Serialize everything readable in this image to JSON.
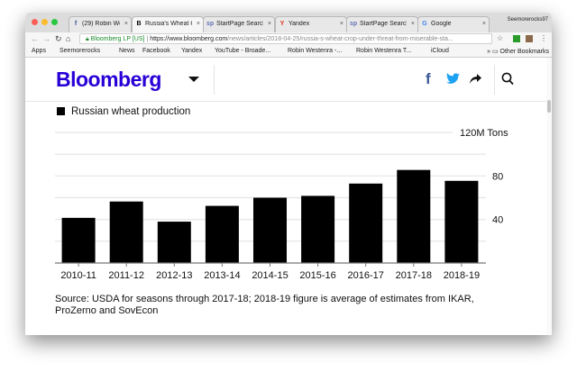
{
  "browser": {
    "tabs": [
      {
        "title": "(29) Robin Westor",
        "icon": "facebook-icon",
        "icon_char": "f",
        "icon_color": "#3b5998",
        "active": false
      },
      {
        "title": "Russia's Wheat C",
        "icon": "bloomberg-icon",
        "icon_char": "B",
        "icon_color": "#000000",
        "active": true
      },
      {
        "title": "StartPage Search",
        "icon": "startpage-icon",
        "icon_char": "sp",
        "icon_color": "#6573b5",
        "active": false
      },
      {
        "title": "Yandex",
        "icon": "yandex-icon",
        "icon_char": "Y",
        "icon_color": "#e0301e",
        "active": false
      },
      {
        "title": "StartPage Search",
        "icon": "startpage-icon",
        "icon_char": "sp",
        "icon_color": "#6573b5",
        "active": false
      },
      {
        "title": "Google",
        "icon": "google-icon",
        "icon_char": "G",
        "icon_color": "#4285f4",
        "active": false
      }
    ],
    "profile": "Seemorerocks97",
    "site_identity": "Bloomberg LP [US]",
    "url_host": "https://www.bloomberg.com",
    "url_path": "/news/articles/2018-04-25/russia-s-wheat-crop-under-threat-from-miserable-sta...",
    "bookmarks": [
      "Apps",
      "Seemorerocks",
      "News",
      "Facebook",
      "Yandex",
      "YouTube - Broade...",
      "Robin Westenra -...",
      "Robin Westenra T...",
      "iCloud"
    ],
    "other_bookmarks": "Other Bookmarks"
  },
  "site": {
    "logo": "Bloomberg",
    "brand_color": "#2800d7"
  },
  "chart_data": {
    "type": "bar",
    "legend": "Russian wheat production",
    "legend_placement": "top-left",
    "categories": [
      "2010-11",
      "2011-12",
      "2012-13",
      "2013-14",
      "2014-15",
      "2015-16",
      "2016-17",
      "2017-18",
      "2018-19"
    ],
    "values": [
      41.5,
      56.5,
      38,
      52.5,
      60,
      61.7,
      73,
      85.5,
      75.5
    ],
    "ylim": [
      0,
      120
    ],
    "yticks": [
      {
        "value": 120,
        "label": "120M Tons"
      },
      {
        "value": 80,
        "label": "80"
      },
      {
        "value": 40,
        "label": "40"
      }
    ],
    "gridlines": [
      20,
      40,
      60,
      80,
      100,
      120
    ],
    "bar_color": "#000000",
    "grid": true,
    "source": "Source: USDA for seasons through 2017-18; 2018-19 figure is average of estimates from IKAR, ProZerno and SovEcon"
  }
}
